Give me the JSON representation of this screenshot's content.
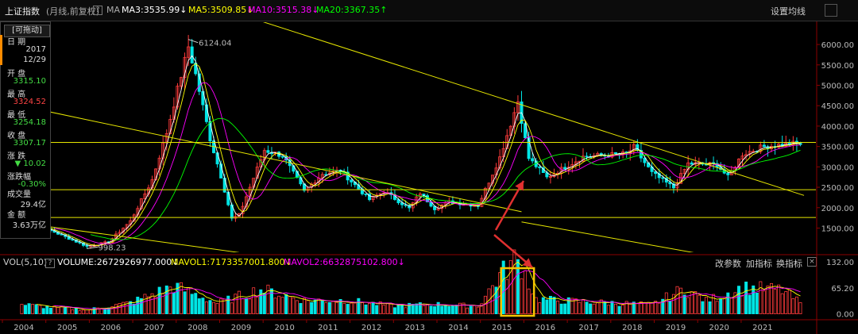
{
  "header": {
    "index_name": "上证指数",
    "period_info": "(月线,前复权)",
    "ma_label": "MA",
    "ma3": "MA3:3535.99",
    "ma5": "MA5:3509.85",
    "ma10": "MA10:3515.38",
    "ma20": "MA20:3367.35",
    "ma3_arrow": "↓",
    "ma5_arrow": "↓",
    "ma10_arrow": "↓",
    "ma20_arrow": "↑",
    "settings": "设置均线",
    "question_mark": "?",
    "colors": {
      "ma3": "#ffffff",
      "ma5": "#ffff00",
      "ma10": "#ff00ff",
      "ma20": "#00ff00"
    }
  },
  "sidebar": {
    "drag_label": "[可拖动]",
    "items": [
      {
        "label": "日 期",
        "value": "2017",
        "value2": "12/29",
        "color": "#dddddd"
      },
      {
        "label": "开 盘",
        "value": "3315.10",
        "color": "#44dd44"
      },
      {
        "label": "最 高",
        "value": "3324.52",
        "color": "#ff4444"
      },
      {
        "label": "最 低",
        "value": "3254.18",
        "color": "#44dd44"
      },
      {
        "label": "收 盘",
        "value": "3307.17",
        "color": "#44dd44"
      },
      {
        "label": "涨 跌",
        "value": "▼ 10.02",
        "color": "#44dd44"
      },
      {
        "label": "涨跌幅",
        "value": "-0.30%",
        "color": "#44dd44"
      },
      {
        "label": "成交量",
        "value": "29.4亿",
        "color": "#dddddd"
      },
      {
        "label": "金 额",
        "value": "3.63万亿",
        "color": "#dddddd"
      }
    ]
  },
  "volume_header": {
    "label": "VOL(5,10)",
    "volume": "VOLUME:2672926977.000",
    "mavol1": "MAVOL1:7173357001.800",
    "mavol2": "MAVOL2:6632875102.800",
    "volume_arrow": "↓",
    "mavol1_arrow": "↓",
    "mavol2_arrow": "↓",
    "change_params": "改参数",
    "add_indicator": "加指标",
    "switch_indicator": "换指标",
    "question_mark": "?",
    "close_icon": "×"
  },
  "chart_data": {
    "type": "candlestick",
    "y_ticks": [
      "6000.00",
      "5500.00",
      "5000.00",
      "4500.00",
      "4000.00",
      "3500.00",
      "3000.00",
      "2500.00",
      "2000.00",
      "1500.00"
    ],
    "vol_ticks": [
      "132.00",
      "65.20",
      "0.00"
    ],
    "years": [
      "2004",
      "2005",
      "2006",
      "2007",
      "2008",
      "2009",
      "2010",
      "2011",
      "2012",
      "2013",
      "2014",
      "2015",
      "2016",
      "2017",
      "2018",
      "2019",
      "2020",
      "2021"
    ],
    "annotations": {
      "high": "6124.04",
      "low": "998.23"
    },
    "horizontal_levels": [
      3600,
      2440,
      1760
    ],
    "trendlines": [
      {
        "from": [
          "2003-01",
          4700
        ],
        "to": [
          "2015-06",
          1900
        ]
      },
      {
        "from": [
          "2003-01",
          1760
        ],
        "to": [
          "2008-12",
          900
        ]
      },
      {
        "from": [
          "2008-03",
          7000
        ],
        "to": [
          "2021-12",
          2300
        ]
      },
      {
        "from": [
          "2015-06",
          1650
        ],
        "to": [
          "2020-06",
          700
        ]
      }
    ],
    "monthly_close_anchors": [
      [
        "2003-12",
        1497
      ],
      [
        "2004-04",
        1560
      ],
      [
        "2004-09",
        1400
      ],
      [
        "2005-06",
        1050
      ],
      [
        "2005-12",
        1160
      ],
      [
        "2006-06",
        1670
      ],
      [
        "2006-12",
        2680
      ],
      [
        "2007-04",
        3840
      ],
      [
        "2007-10",
        5950
      ],
      [
        "2007-12",
        5260
      ],
      [
        "2008-04",
        3690
      ],
      [
        "2008-07",
        2770
      ],
      [
        "2008-10",
        1730
      ],
      [
        "2008-12",
        1820
      ],
      [
        "2009-07",
        3410
      ],
      [
        "2009-12",
        3280
      ],
      [
        "2010-06",
        2400
      ],
      [
        "2010-11",
        2830
      ],
      [
        "2011-04",
        2910
      ],
      [
        "2011-12",
        2200
      ],
      [
        "2012-04",
        2400
      ],
      [
        "2012-11",
        1980
      ],
      [
        "2013-02",
        2360
      ],
      [
        "2013-06",
        1980
      ],
      [
        "2013-10",
        2140
      ],
      [
        "2014-06",
        2050
      ],
      [
        "2014-12",
        3230
      ],
      [
        "2015-05",
        4610
      ],
      [
        "2015-08",
        3210
      ],
      [
        "2016-01",
        2740
      ],
      [
        "2016-11",
        3250
      ],
      [
        "2017-11",
        3320
      ],
      [
        "2018-01",
        3480
      ],
      [
        "2018-06",
        2850
      ],
      [
        "2018-12",
        2490
      ],
      [
        "2019-04",
        3080
      ],
      [
        "2019-12",
        3050
      ],
      [
        "2020-03",
        2750
      ],
      [
        "2020-07",
        3310
      ],
      [
        "2020-12",
        3470
      ],
      [
        "2021-02",
        3510
      ],
      [
        "2021-09",
        3570
      ],
      [
        "2021-11",
        3560
      ]
    ],
    "volume_anchors_billion": [
      [
        "2003-12",
        24
      ],
      [
        "2004-06",
        18
      ],
      [
        "2005-06",
        10
      ],
      [
        "2006-06",
        28
      ],
      [
        "2007-06",
        70
      ],
      [
        "2008-06",
        27
      ],
      [
        "2009-06",
        62
      ],
      [
        "2010-06",
        34
      ],
      [
        "2011-06",
        34
      ],
      [
        "2012-06",
        20
      ],
      [
        "2013-06",
        24
      ],
      [
        "2014-06",
        20
      ],
      [
        "2014-12",
        96
      ],
      [
        "2015-04",
        135
      ],
      [
        "2015-06",
        124
      ],
      [
        "2015-10",
        37
      ],
      [
        "2016-06",
        33
      ],
      [
        "2017-06",
        28
      ],
      [
        "2018-06",
        23
      ],
      [
        "2019-03",
        64
      ],
      [
        "2019-09",
        33
      ],
      [
        "2020-07",
        66
      ],
      [
        "2021-06",
        60
      ],
      [
        "2021-11",
        27
      ]
    ],
    "highlight_box": {
      "from": "2015-01",
      "to": "2015-09"
    },
    "arrows": [
      {
        "from": [
          "2015-01",
          "vol-top"
        ],
        "to": [
          "2014-10",
          "vol-box"
        ]
      },
      {
        "from": [
          "2014-11",
          1500
        ],
        "to": [
          "2015-03",
          3000
        ]
      }
    ]
  }
}
